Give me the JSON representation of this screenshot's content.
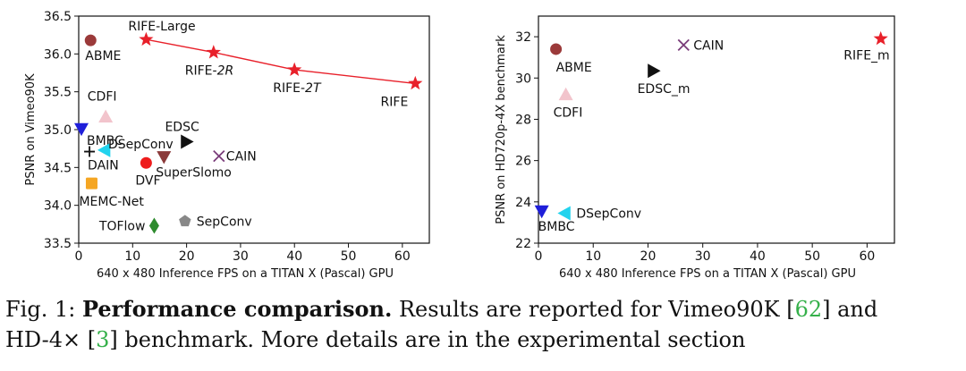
{
  "chart_data": [
    {
      "type": "scatter",
      "xlabel": "640 x 480 Inference FPS on a TITAN X (Pascal) GPU",
      "ylabel": "PSNR on Vimeo90K",
      "xlim": [
        0,
        65
      ],
      "ylim": [
        33.5,
        36.5
      ],
      "xticks": [
        0,
        10,
        20,
        30,
        40,
        50,
        60
      ],
      "yticks": [
        33.5,
        34.0,
        34.5,
        35.0,
        35.5,
        36.0,
        36.5
      ],
      "xtick_labels": [
        "0",
        "10",
        "20",
        "30",
        "40",
        "50",
        "60"
      ],
      "ytick_labels": [
        "33.5",
        "34.0",
        "34.5",
        "35.0",
        "35.5",
        "36.0",
        "36.5"
      ],
      "grid": false,
      "series_line": {
        "color": "#e8202a",
        "points": [
          "RIFE-Large",
          "RIFE-2R",
          "RIFE-2T",
          "RIFE"
        ]
      },
      "points": [
        {
          "label": "RIFE-Large",
          "x": 12.5,
          "y": 36.19,
          "marker": "star",
          "color": "#e8202a"
        },
        {
          "label": "RIFE-2R",
          "x": 25.0,
          "y": 36.02,
          "marker": "star",
          "color": "#e8202a"
        },
        {
          "label": "RIFE-2T",
          "x": 40.0,
          "y": 35.79,
          "marker": "star",
          "color": "#e8202a"
        },
        {
          "label": "RIFE",
          "x": 62.4,
          "y": 35.61,
          "marker": "star",
          "color": "#e8202a"
        },
        {
          "label": "ABME",
          "x": 2.2,
          "y": 36.18,
          "marker": "circle",
          "color": "#9b3a3a"
        },
        {
          "label": "CDFI",
          "x": 5.0,
          "y": 35.17,
          "marker": "triangle-up",
          "color": "#f2c4cc"
        },
        {
          "label": "BMBC",
          "x": 0.5,
          "y": 35.01,
          "marker": "triangle-down",
          "color": "#1f1fd9"
        },
        {
          "label": "DAIN",
          "x": 2.0,
          "y": 34.71,
          "marker": "plus",
          "color": "#111111"
        },
        {
          "label": "DSepConv",
          "x": 4.8,
          "y": 34.73,
          "marker": "triangle-left",
          "color": "#22d3ee"
        },
        {
          "label": "EDSC",
          "x": 20.0,
          "y": 34.84,
          "marker": "triangle-right",
          "color": "#111111"
        },
        {
          "label": "CAIN",
          "x": 26.0,
          "y": 34.65,
          "marker": "x",
          "color": "#7a3c7a"
        },
        {
          "label": "SuperSlomo",
          "x": 15.8,
          "y": 34.64,
          "marker": "triangle-down",
          "color": "#8b3a3a"
        },
        {
          "label": "DVF",
          "x": 12.5,
          "y": 34.56,
          "marker": "circle",
          "color": "#ee1c1c"
        },
        {
          "label": "MEMC-Net",
          "x": 2.4,
          "y": 34.29,
          "marker": "square",
          "color": "#f5a623"
        },
        {
          "label": "TOFlow",
          "x": 14.0,
          "y": 33.73,
          "marker": "diamond",
          "color": "#2e8b2e"
        },
        {
          "label": "SepConv",
          "x": 19.7,
          "y": 33.79,
          "marker": "pentagon",
          "color": "#888888"
        }
      ]
    },
    {
      "type": "scatter",
      "xlabel": "640 x 480 Inference FPS on a TITAN X (Pascal) GPU",
      "ylabel": "PSNR on HD720p-4X benchmark",
      "xlim": [
        0,
        65
      ],
      "ylim": [
        22,
        33
      ],
      "xticks": [
        0,
        10,
        20,
        30,
        40,
        50,
        60
      ],
      "yticks": [
        22,
        24,
        26,
        28,
        30,
        32
      ],
      "xtick_labels": [
        "0",
        "10",
        "20",
        "30",
        "40",
        "50",
        "60"
      ],
      "ytick_labels": [
        "22",
        "24",
        "26",
        "28",
        "30",
        "32"
      ],
      "grid": false,
      "points": [
        {
          "label": "ABME",
          "x": 3.2,
          "y": 31.4,
          "marker": "circle",
          "color": "#9b3a3a"
        },
        {
          "label": "CAIN",
          "x": 26.5,
          "y": 31.6,
          "marker": "x",
          "color": "#7a3c7a"
        },
        {
          "label": "RIFE_m",
          "x": 62.5,
          "y": 31.9,
          "marker": "star",
          "color": "#e8202a"
        },
        {
          "label": "EDSC_m",
          "x": 21.0,
          "y": 30.35,
          "marker": "triangle-right",
          "color": "#111111"
        },
        {
          "label": "CDFI",
          "x": 5.0,
          "y": 29.2,
          "marker": "triangle-up",
          "color": "#f2c4cc"
        },
        {
          "label": "BMBC",
          "x": 0.6,
          "y": 23.55,
          "marker": "triangle-down",
          "color": "#1f1fd9"
        },
        {
          "label": "DSepConv",
          "x": 4.8,
          "y": 23.45,
          "marker": "triangle-left",
          "color": "#22d3ee"
        }
      ]
    }
  ],
  "caption": {
    "prefix": "Fig. 1:",
    "bold": "Performance comparison.",
    "line1_text": "Results are reported for Vimeo90K [",
    "cite1": "62",
    "line1_end": "] and",
    "line2_text": "HD-4× [",
    "cite2": "3",
    "line2_end": "] benchmark. More details are in the experimental section"
  }
}
